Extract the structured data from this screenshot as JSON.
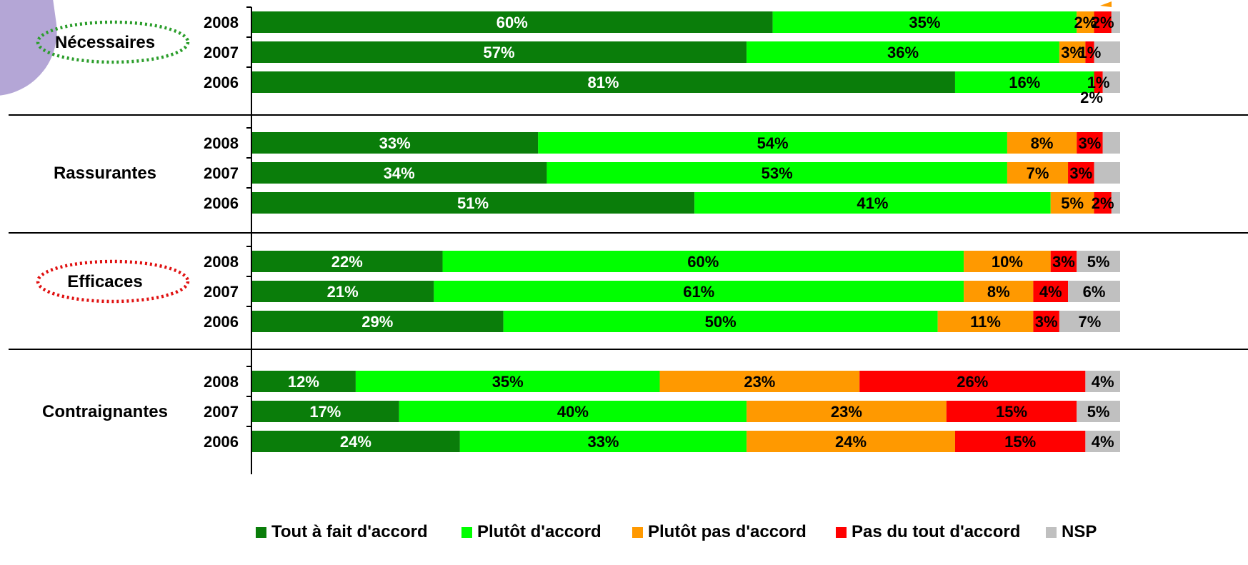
{
  "colors": {
    "tout_a_fait": "#0a7d0a",
    "plutot": "#00ff00",
    "plutot_pas": "#ff9900",
    "pas_du_tout": "#ff0000",
    "nsp": "#c0c0c0",
    "deco_corner": "#b4a6d6",
    "necessaires_ring": "#2a9d2a",
    "efficaces_ring": "#e01010"
  },
  "chart_data": {
    "type": "bar",
    "orientation": "horizontal",
    "stacked": true,
    "percent": true,
    "series": [
      {
        "key": "tout_a_fait",
        "name": "Tout à fait d'accord"
      },
      {
        "key": "plutot",
        "name": "Plutôt d'accord"
      },
      {
        "key": "plutot_pas",
        "name": "Plutôt pas d'accord"
      },
      {
        "key": "pas_du_tout",
        "name": "Pas du tout d'accord"
      },
      {
        "key": "nsp",
        "name": "NSP"
      }
    ],
    "groups": [
      {
        "label": "Nécessaires",
        "highlight": "necessaires_ring",
        "rows": [
          {
            "year": "2008",
            "values": [
              60,
              35,
              2,
              2,
              1
            ],
            "labels": [
              "60%",
              "35%",
              "2%",
              "2%",
              ""
            ]
          },
          {
            "year": "2007",
            "values": [
              57,
              36,
              3,
              1,
              3
            ],
            "labels": [
              "57%",
              "36%",
              "3%",
              "1%",
              ""
            ]
          },
          {
            "year": "2006",
            "values": [
              81,
              16,
              0,
              1,
              2
            ],
            "labels": [
              "81%",
              "16%",
              "",
              "1%",
              ""
            ]
          }
        ],
        "extra_label": "2%"
      },
      {
        "label": "Rassurantes",
        "highlight": "",
        "rows": [
          {
            "year": "2008",
            "values": [
              33,
              54,
              8,
              3,
              2
            ],
            "labels": [
              "33%",
              "54%",
              "8%",
              "3%",
              ""
            ]
          },
          {
            "year": "2007",
            "values": [
              34,
              53,
              7,
              3,
              3
            ],
            "labels": [
              "34%",
              "53%",
              "7%",
              "3%",
              ""
            ]
          },
          {
            "year": "2006",
            "values": [
              51,
              41,
              5,
              2,
              1
            ],
            "labels": [
              "51%",
              "41%",
              "5%",
              "2%",
              ""
            ]
          }
        ]
      },
      {
        "label": "Efficaces",
        "highlight": "efficaces_ring",
        "rows": [
          {
            "year": "2008",
            "values": [
              22,
              60,
              10,
              3,
              5
            ],
            "labels": [
              "22%",
              "60%",
              "10%",
              "3%",
              "5%"
            ]
          },
          {
            "year": "2007",
            "values": [
              21,
              61,
              8,
              4,
              6
            ],
            "labels": [
              "21%",
              "61%",
              "8%",
              "4%",
              "6%"
            ]
          },
          {
            "year": "2006",
            "values": [
              29,
              50,
              11,
              3,
              7
            ],
            "labels": [
              "29%",
              "50%",
              "11%",
              "3%",
              "7%"
            ]
          }
        ]
      },
      {
        "label": "Contraignantes",
        "highlight": "",
        "rows": [
          {
            "year": "2008",
            "values": [
              12,
              35,
              23,
              26,
              4
            ],
            "labels": [
              "12%",
              "35%",
              "23%",
              "26%",
              "4%"
            ]
          },
          {
            "year": "2007",
            "values": [
              17,
              40,
              23,
              15,
              5
            ],
            "labels": [
              "17%",
              "40%",
              "23%",
              "15%",
              "5%"
            ]
          },
          {
            "year": "2006",
            "values": [
              24,
              33,
              24,
              15,
              4
            ],
            "labels": [
              "24%",
              "33%",
              "24%",
              "15%",
              "4%"
            ]
          }
        ]
      }
    ],
    "xlim": [
      0,
      100
    ],
    "grid": false,
    "legend_position": "bottom"
  }
}
